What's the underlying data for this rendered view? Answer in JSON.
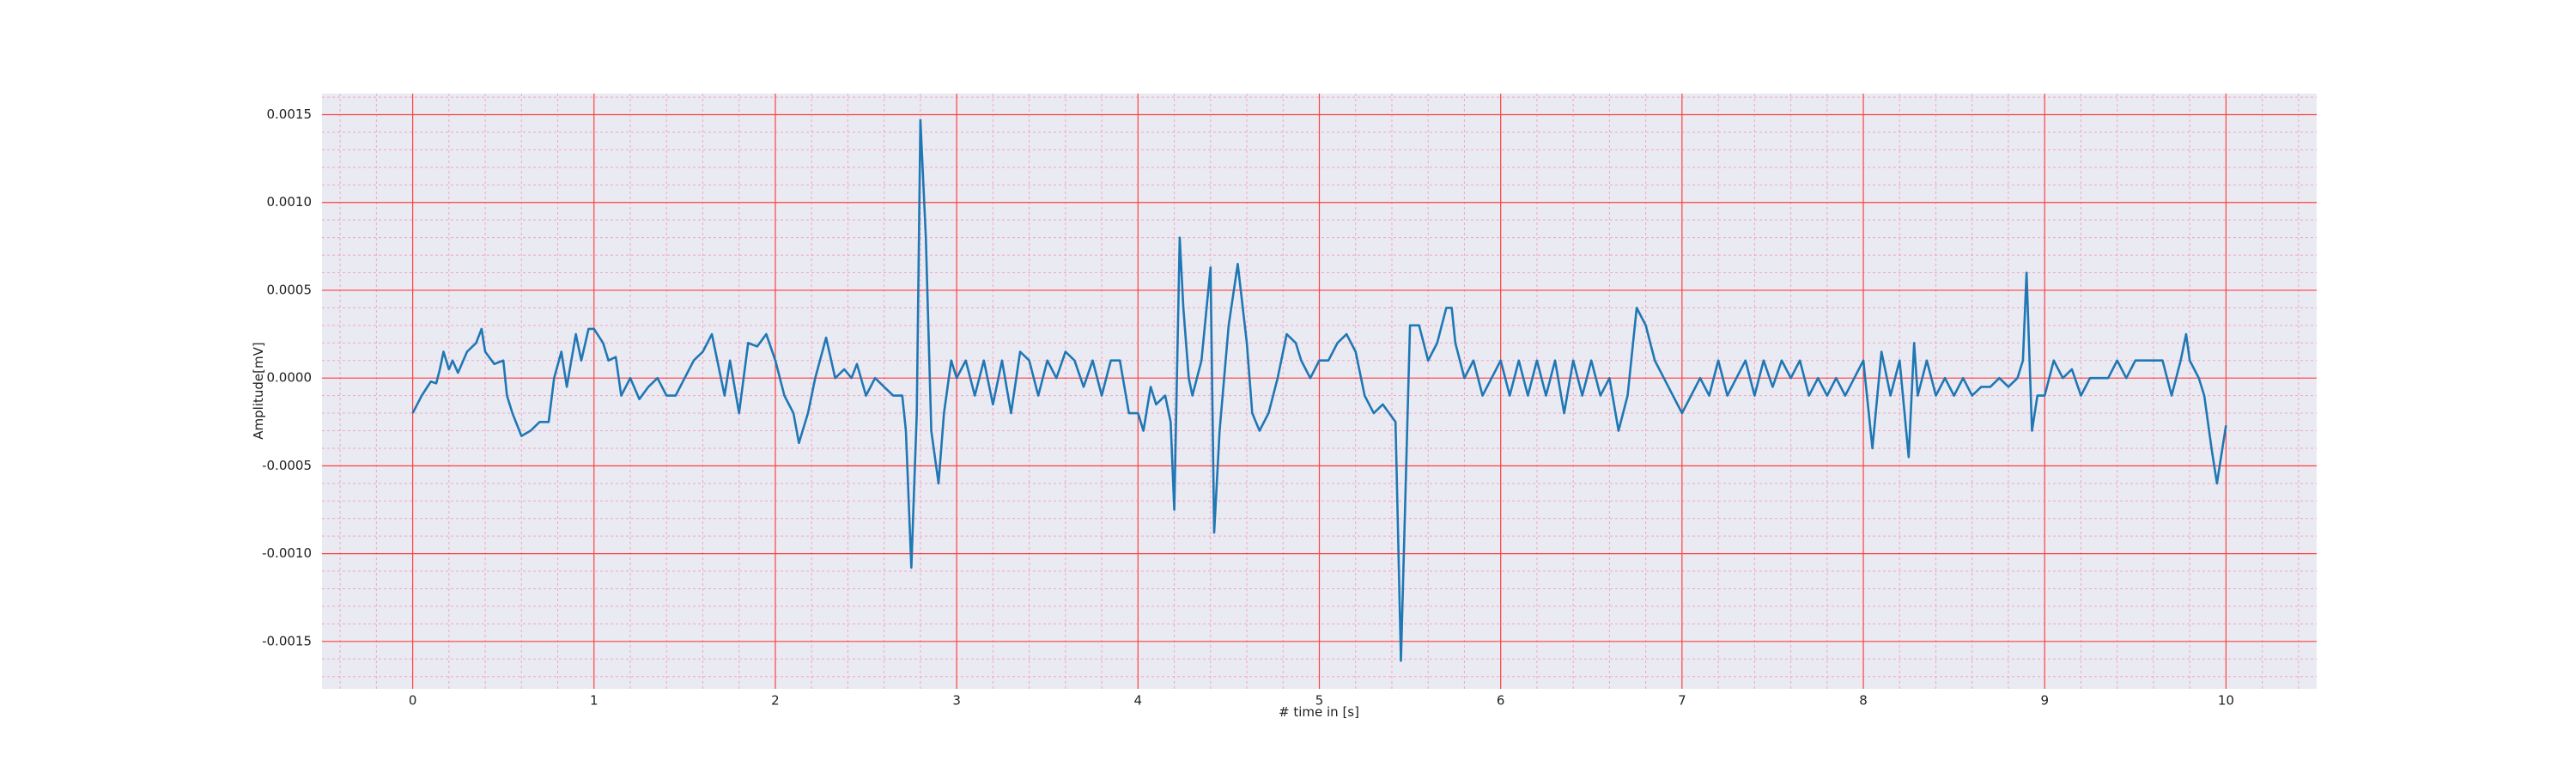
{
  "chart_data": {
    "type": "line",
    "xlabel": "# time in [s]",
    "ylabel": "Amplitude[mV]",
    "xlim": [
      -0.5,
      10.5
    ],
    "ylim": [
      -0.00177,
      0.00162
    ],
    "xticks": [
      0,
      1,
      2,
      3,
      4,
      5,
      6,
      7,
      8,
      9,
      10
    ],
    "yticks": [
      {
        "value": -0.0015,
        "label": "-0.0015"
      },
      {
        "value": -0.001,
        "label": "-0.0010"
      },
      {
        "value": -0.0005,
        "label": "-0.0005"
      },
      {
        "value": 0,
        "label": "0.0000"
      },
      {
        "value": 0.0005,
        "label": "0.0005"
      },
      {
        "value": 0.001,
        "label": "0.0010"
      },
      {
        "value": 0.0015,
        "label": "0.0015"
      }
    ],
    "grid": true,
    "minor_grid": true,
    "grid_color": "#ff4040",
    "minor_grid_color": "#f2a6c0",
    "background": "#eaeaf2",
    "series": [
      {
        "color": "#1f77b4",
        "x": [
          0,
          0.05,
          0.1,
          0.13,
          0.15,
          0.17,
          0.2,
          0.22,
          0.25,
          0.3,
          0.35,
          0.38,
          0.4,
          0.45,
          0.5,
          0.52,
          0.55,
          0.6,
          0.65,
          0.7,
          0.75,
          0.78,
          0.82,
          0.85,
          0.9,
          0.93,
          0.97,
          1.0,
          1.05,
          1.08,
          1.12,
          1.15,
          1.2,
          1.25,
          1.3,
          1.35,
          1.4,
          1.45,
          1.5,
          1.55,
          1.6,
          1.65,
          1.7,
          1.72,
          1.75,
          1.8,
          1.85,
          1.9,
          1.95,
          2.0,
          2.05,
          2.1,
          2.13,
          2.18,
          2.22,
          2.28,
          2.33,
          2.38,
          2.42,
          2.45,
          2.5,
          2.55,
          2.6,
          2.65,
          2.7,
          2.72,
          2.75,
          2.78,
          2.8,
          2.83,
          2.86,
          2.9,
          2.93,
          2.97,
          3.0,
          3.05,
          3.1,
          3.15,
          3.2,
          3.25,
          3.3,
          3.35,
          3.4,
          3.45,
          3.5,
          3.55,
          3.6,
          3.65,
          3.7,
          3.75,
          3.8,
          3.85,
          3.9,
          3.95,
          4.0,
          4.03,
          4.07,
          4.1,
          4.15,
          4.18,
          4.2,
          4.23,
          4.25,
          4.28,
          4.3,
          4.35,
          4.4,
          4.42,
          4.45,
          4.5,
          4.55,
          4.6,
          4.63,
          4.67,
          4.72,
          4.77,
          4.82,
          4.87,
          4.9,
          4.95,
          5.0,
          5.05,
          5.1,
          5.15,
          5.2,
          5.25,
          5.3,
          5.35,
          5.42,
          5.45,
          5.5,
          5.55,
          5.6,
          5.65,
          5.7,
          5.73,
          5.75,
          5.8,
          5.85,
          5.9,
          5.95,
          6.0,
          6.05,
          6.1,
          6.15,
          6.2,
          6.25,
          6.3,
          6.35,
          6.4,
          6.45,
          6.5,
          6.55,
          6.6,
          6.65,
          6.7,
          6.75,
          6.8,
          6.85,
          6.9,
          6.95,
          7.0,
          7.05,
          7.1,
          7.15,
          7.2,
          7.25,
          7.3,
          7.35,
          7.4,
          7.45,
          7.5,
          7.55,
          7.6,
          7.65,
          7.7,
          7.75,
          7.8,
          7.85,
          7.9,
          7.95,
          8.0,
          8.05,
          8.1,
          8.15,
          8.2,
          8.25,
          8.28,
          8.3,
          8.35,
          8.4,
          8.45,
          8.5,
          8.55,
          8.6,
          8.65,
          8.7,
          8.75,
          8.8,
          8.85,
          8.88,
          8.9,
          8.93,
          8.96,
          9.0,
          9.05,
          9.1,
          9.15,
          9.2,
          9.25,
          9.3,
          9.35,
          9.4,
          9.45,
          9.5,
          9.55,
          9.6,
          9.65,
          9.7,
          9.75,
          9.78,
          9.8,
          9.85,
          9.88,
          9.92,
          9.95,
          9.98,
          10.0
        ],
        "values": [
          -0.0002,
          -0.0001,
          -2e-05,
          -3e-05,
          5e-05,
          0.00015,
          5e-05,
          0.0001,
          3e-05,
          0.00015,
          0.0002,
          0.00028,
          0.00015,
          8e-05,
          0.0001,
          -0.0001,
          -0.0002,
          -0.00033,
          -0.0003,
          -0.00025,
          -0.00025,
          0.0,
          0.00015,
          -5e-05,
          0.00025,
          0.0001,
          0.00028,
          0.00028,
          0.0002,
          0.0001,
          0.00012,
          -0.0001,
          0.0,
          -0.00012,
          -5e-05,
          0.0,
          -0.0001,
          -0.0001,
          0.0,
          0.0001,
          0.00015,
          0.00025,
          0.0,
          -0.0001,
          0.0001,
          -0.0002,
          0.0002,
          0.00018,
          0.00025,
          0.0001,
          -0.0001,
          -0.0002,
          -0.00037,
          -0.0002,
          0.0,
          0.00023,
          0.0,
          5e-05,
          0.0,
          8e-05,
          -0.0001,
          0.0,
          -5e-05,
          -0.0001,
          -0.0001,
          -0.0003,
          -0.00108,
          -0.0002,
          0.00147,
          0.0008,
          -0.0003,
          -0.0006,
          -0.0002,
          0.0001,
          0.0,
          0.0001,
          -0.0001,
          0.0001,
          -0.00015,
          0.0001,
          -0.0002,
          0.00015,
          0.0001,
          -0.0001,
          0.0001,
          0.0,
          0.00015,
          0.0001,
          -5e-05,
          0.0001,
          -0.0001,
          0.0001,
          0.0001,
          -0.0002,
          -0.0002,
          -0.0003,
          -5e-05,
          -0.00015,
          -0.0001,
          -0.00025,
          -0.00075,
          0.0008,
          0.0004,
          0.0,
          -0.0001,
          0.0001,
          0.00063,
          -0.00088,
          -0.0003,
          0.0003,
          0.00065,
          0.0002,
          -0.0002,
          -0.0003,
          -0.0002,
          0.0,
          0.00025,
          0.0002,
          0.0001,
          0.0,
          0.0001,
          0.0001,
          0.0002,
          0.00025,
          0.00015,
          -0.0001,
          -0.0002,
          -0.00015,
          -0.00025,
          -0.00161,
          0.0003,
          0.0003,
          0.0001,
          0.0002,
          0.0004,
          0.0004,
          0.0002,
          0.0,
          0.0001,
          -0.0001,
          0.0,
          0.0001,
          -0.0001,
          0.0001,
          -0.0001,
          0.0001,
          -0.0001,
          0.0001,
          -0.0002,
          0.0001,
          -0.0001,
          0.0001,
          -0.0001,
          0.0,
          -0.0003,
          -0.0001,
          0.0004,
          0.0003,
          0.0001,
          0.0,
          -0.0001,
          -0.0002,
          -0.0001,
          0.0,
          -0.0001,
          0.0001,
          -0.0001,
          0.0,
          0.0001,
          -0.0001,
          0.0001,
          -5e-05,
          0.0001,
          0.0,
          0.0001,
          -0.0001,
          0.0,
          -0.0001,
          0.0,
          -0.0001,
          0.0,
          0.0001,
          -0.0004,
          0.00015,
          -0.0001,
          0.0001,
          -0.00045,
          0.0002,
          -0.0001,
          0.0001,
          -0.0001,
          0.0,
          -0.0001,
          0.0,
          -0.0001,
          -5e-05,
          -5e-05,
          0.0,
          -5e-05,
          0.0,
          0.0001,
          0.0006,
          -0.0003,
          -0.0001,
          -0.0001,
          0.0001,
          0.0,
          5e-05,
          -0.0001,
          0.0,
          0.0,
          0.0,
          0.0001,
          0.0,
          0.0001,
          0.0001,
          0.0001,
          0.0001,
          -0.0001,
          0.0001,
          0.00025,
          0.0001,
          0.0,
          -0.0001,
          -0.0004,
          -0.0006,
          -0.0004,
          -0.00027
        ]
      }
    ]
  }
}
